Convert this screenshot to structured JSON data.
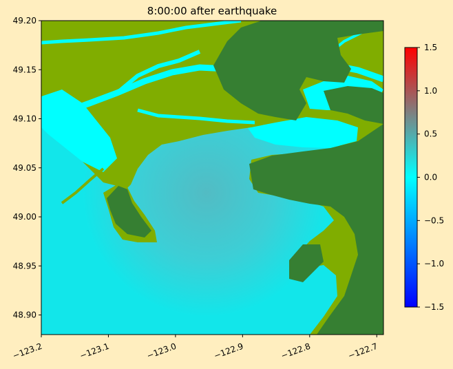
{
  "chart_data": {
    "type": "heatmap",
    "title": "8:00:00 after earthquake",
    "xlim": [
      -123.2,
      -122.69
    ],
    "ylim": [
      48.88,
      49.2
    ],
    "x_ticks": [
      {
        "value": -123.2,
        "label": "−123.2"
      },
      {
        "value": -123.1,
        "label": "−123.1"
      },
      {
        "value": -123.0,
        "label": "−123.0"
      },
      {
        "value": -122.9,
        "label": "−122.9"
      },
      {
        "value": -122.8,
        "label": "−122.8"
      },
      {
        "value": -122.7,
        "label": "−122.7"
      }
    ],
    "y_ticks": [
      {
        "value": 48.9,
        "label": "48.90"
      },
      {
        "value": 48.95,
        "label": "48.95"
      },
      {
        "value": 49.0,
        "label": "49.00"
      },
      {
        "value": 49.05,
        "label": "49.05"
      },
      {
        "value": 49.1,
        "label": "49.10"
      },
      {
        "value": 49.15,
        "label": "49.15"
      },
      {
        "value": 49.2,
        "label": "49.20"
      }
    ],
    "colorbar": {
      "range": [
        -1.5,
        1.5
      ],
      "colors": [
        "#0000ff",
        "#00ffff",
        "#ff0000"
      ],
      "ticks": [
        {
          "value": 1.5,
          "label": "1.5"
        },
        {
          "value": 1.0,
          "label": "1.0"
        },
        {
          "value": 0.5,
          "label": "0.5"
        },
        {
          "value": 0.0,
          "label": "0.0"
        },
        {
          "value": -0.5,
          "label": "−0.5"
        },
        {
          "value": -1.0,
          "label": "−1.0"
        },
        {
          "value": -1.5,
          "label": "−1.5"
        }
      ]
    },
    "land_colors": {
      "lowland": "#80AD00",
      "highland": "#367F32"
    },
    "sea_color": "#00FFFF"
  }
}
